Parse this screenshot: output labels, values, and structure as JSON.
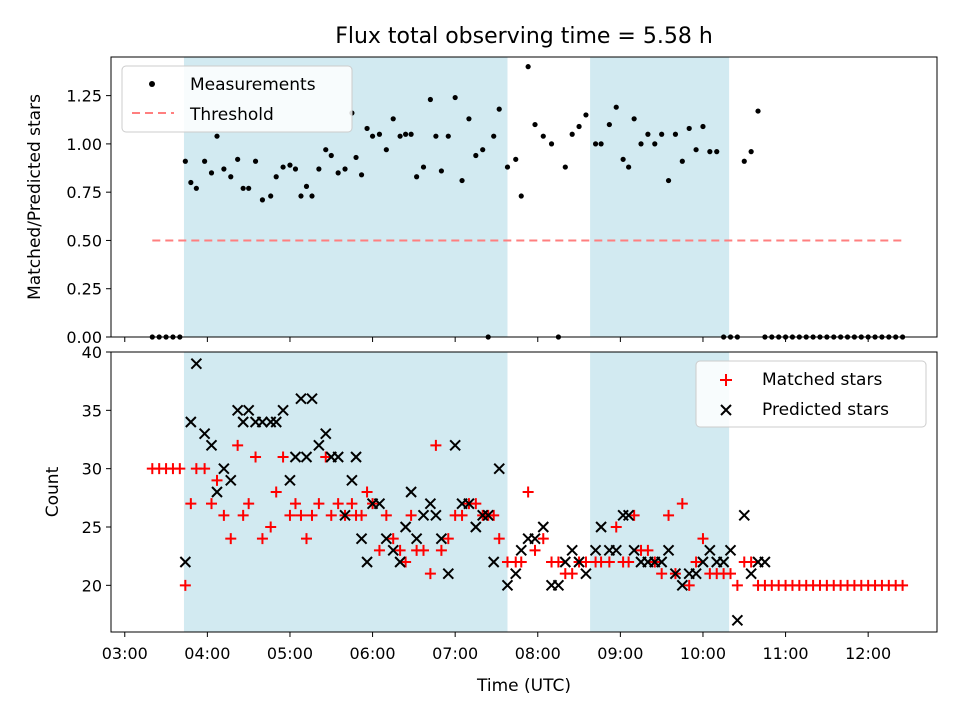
{
  "title": "Flux total observing time = 5.58 h",
  "xlabel": "Time (UTC)",
  "colors": {
    "observing_band": "#add8e6",
    "measurement": "#000000",
    "threshold": "#ff7f7f",
    "matched": "#ff0000",
    "predicted": "#000000"
  },
  "chart_data": [
    {
      "type": "scatter",
      "ylabel": "Matched/Predicted stars",
      "ylim": [
        0.0,
        1.45
      ],
      "yticks": [
        0.0,
        0.25,
        0.5,
        0.75,
        1.0,
        1.25
      ],
      "ytick_labels": [
        "0.00",
        "0.25",
        "0.50",
        "0.75",
        "1.00",
        "1.25"
      ],
      "legend": {
        "position": "top-left",
        "entries": [
          "Measurements",
          "Threshold"
        ]
      },
      "threshold": {
        "name": "Threshold",
        "value": 0.5,
        "x_start": "03:20",
        "x_end": "12:25"
      },
      "series": [
        {
          "name": "Measurements",
          "x": [
            "03:20",
            "03:25",
            "03:30",
            "03:35",
            "03:40",
            "03:44",
            "03:48",
            "03:52",
            "03:58",
            "04:03",
            "04:07",
            "04:12",
            "04:17",
            "04:22",
            "04:26",
            "04:30",
            "04:35",
            "04:40",
            "04:46",
            "04:50",
            "04:55",
            "05:00",
            "05:04",
            "05:08",
            "05:12",
            "05:16",
            "05:21",
            "05:26",
            "05:30",
            "05:35",
            "05:40",
            "05:45",
            "05:48",
            "05:52",
            "05:56",
            "06:00",
            "06:05",
            "06:10",
            "06:15",
            "06:20",
            "06:24",
            "06:28",
            "06:32",
            "06:37",
            "06:42",
            "06:46",
            "06:50",
            "06:55",
            "07:00",
            "07:05",
            "07:10",
            "07:15",
            "07:20",
            "07:24",
            "07:28",
            "07:32",
            "07:38",
            "07:44",
            "07:48",
            "07:53",
            "07:58",
            "08:04",
            "08:10",
            "08:15",
            "08:20",
            "08:25",
            "08:30",
            "08:35",
            "08:42",
            "08:46",
            "08:52",
            "08:57",
            "09:02",
            "09:06",
            "09:10",
            "09:15",
            "09:20",
            "09:25",
            "09:30",
            "09:35",
            "09:40",
            "09:45",
            "09:50",
            "09:55",
            "10:00",
            "10:05",
            "10:10",
            "10:15",
            "10:20",
            "10:25",
            "10:30",
            "10:35",
            "10:40",
            "10:45",
            "10:50",
            "10:55",
            "11:00",
            "11:05",
            "11:10",
            "11:15",
            "11:20",
            "11:25",
            "11:30",
            "11:35",
            "11:40",
            "11:45",
            "11:50",
            "11:55",
            "12:00",
            "12:05",
            "12:10",
            "12:15",
            "12:20",
            "12:25"
          ],
          "y": [
            0,
            0,
            0,
            0,
            0,
            0.91,
            0.8,
            0.77,
            0.91,
            0.85,
            1.04,
            0.87,
            0.83,
            0.92,
            0.77,
            0.77,
            0.91,
            0.71,
            0.73,
            0.83,
            0.88,
            0.89,
            0.87,
            0.73,
            0.78,
            0.73,
            0.87,
            0.97,
            0.94,
            0.85,
            0.87,
            1.16,
            0.93,
            0.84,
            1.08,
            1.04,
            1.05,
            0.97,
            1.13,
            1.04,
            1.05,
            1.05,
            0.83,
            0.88,
            1.23,
            1.04,
            0.86,
            1.04,
            1.24,
            0.81,
            1.13,
            0.94,
            0.97,
            0,
            1.04,
            1.18,
            0.88,
            0.92,
            0.73,
            1.4,
            1.1,
            1.04,
            1.0,
            0,
            0.88,
            1.05,
            1.09,
            1.15,
            1.0,
            1.0,
            1.1,
            1.19,
            0.92,
            0.88,
            1.13,
            1.0,
            1.05,
            1.0,
            1.05,
            0.81,
            1.05,
            0.91,
            1.08,
            0.97,
            1.09,
            0.96,
            0.96,
            0,
            0,
            0,
            0.91,
            0.96,
            1.17,
            0,
            0,
            0,
            0,
            0,
            0,
            0,
            0,
            0,
            0,
            0,
            0,
            0,
            0,
            0,
            0,
            0,
            0,
            0,
            0,
            0
          ]
        }
      ]
    },
    {
      "type": "scatter",
      "ylabel": "Count",
      "ylim": [
        16,
        40
      ],
      "yticks": [
        20,
        25,
        30,
        35,
        40
      ],
      "ytick_labels": [
        "20",
        "25",
        "30",
        "35",
        "40"
      ],
      "xticks": [
        "03:00",
        "04:00",
        "05:00",
        "06:00",
        "07:00",
        "08:00",
        "09:00",
        "10:00",
        "11:00",
        "12:00"
      ],
      "legend": {
        "position": "top-right",
        "entries": [
          "Matched stars",
          "Predicted stars"
        ]
      },
      "series": [
        {
          "name": "Matched stars",
          "x": [
            "03:20",
            "03:25",
            "03:30",
            "03:35",
            "03:40",
            "03:44",
            "03:48",
            "03:52",
            "03:58",
            "04:03",
            "04:07",
            "04:12",
            "04:17",
            "04:22",
            "04:26",
            "04:30",
            "04:35",
            "04:40",
            "04:46",
            "04:50",
            "04:55",
            "05:00",
            "05:04",
            "05:08",
            "05:12",
            "05:16",
            "05:21",
            "05:26",
            "05:30",
            "05:35",
            "05:40",
            "05:45",
            "05:48",
            "05:52",
            "05:56",
            "06:00",
            "06:05",
            "06:10",
            "06:15",
            "06:20",
            "06:24",
            "06:28",
            "06:32",
            "06:37",
            "06:42",
            "06:46",
            "06:50",
            "06:55",
            "07:00",
            "07:05",
            "07:10",
            "07:15",
            "07:20",
            "07:24",
            "07:28",
            "07:32",
            "07:38",
            "07:44",
            "07:48",
            "07:53",
            "07:58",
            "08:04",
            "08:10",
            "08:15",
            "08:20",
            "08:25",
            "08:30",
            "08:35",
            "08:42",
            "08:46",
            "08:52",
            "08:57",
            "09:02",
            "09:06",
            "09:10",
            "09:15",
            "09:20",
            "09:25",
            "09:30",
            "09:35",
            "09:40",
            "09:45",
            "09:50",
            "09:55",
            "10:00",
            "10:05",
            "10:10",
            "10:15",
            "10:20",
            "10:25",
            "10:30",
            "10:35",
            "10:40",
            "10:45",
            "10:50",
            "10:55",
            "11:00",
            "11:05",
            "11:10",
            "11:15",
            "11:20",
            "11:25",
            "11:30",
            "11:35",
            "11:40",
            "11:45",
            "11:50",
            "11:55",
            "12:00",
            "12:05",
            "12:10",
            "12:15",
            "12:20",
            "12:25"
          ],
          "y": [
            30,
            30,
            30,
            30,
            30,
            20,
            27,
            30,
            30,
            27,
            29,
            26,
            24,
            32,
            26,
            27,
            31,
            24,
            25,
            28,
            31,
            26,
            27,
            26,
            24,
            26,
            27,
            31,
            26,
            27,
            26,
            27,
            26,
            26,
            28,
            27,
            23,
            26,
            24,
            23,
            22,
            26,
            23,
            23,
            21,
            32,
            23,
            24,
            26,
            26,
            27,
            27,
            26,
            26,
            26,
            24,
            22,
            22,
            22,
            28,
            23,
            24,
            22,
            22,
            21,
            21,
            22,
            22,
            22,
            22,
            22,
            25,
            22,
            22,
            26,
            23,
            23,
            22,
            21,
            26,
            21,
            27,
            20,
            22,
            24,
            21,
            21,
            21,
            21,
            20,
            22,
            22,
            20,
            20,
            20,
            20,
            20,
            20,
            20,
            20,
            20,
            20,
            20,
            20,
            20,
            20,
            20,
            20,
            20,
            20,
            20,
            20,
            20,
            20
          ]
        },
        {
          "name": "Predicted stars",
          "x": [
            "03:44",
            "03:48",
            "03:52",
            "03:58",
            "04:03",
            "04:07",
            "04:12",
            "04:17",
            "04:22",
            "04:26",
            "04:30",
            "04:35",
            "04:40",
            "04:46",
            "04:50",
            "04:55",
            "05:00",
            "05:04",
            "05:08",
            "05:12",
            "05:16",
            "05:21",
            "05:26",
            "05:30",
            "05:35",
            "05:40",
            "05:45",
            "05:48",
            "05:52",
            "05:56",
            "06:00",
            "06:05",
            "06:10",
            "06:15",
            "06:20",
            "06:24",
            "06:28",
            "06:32",
            "06:37",
            "06:42",
            "06:46",
            "06:50",
            "06:55",
            "07:00",
            "07:05",
            "07:10",
            "07:15",
            "07:20",
            "07:24",
            "07:28",
            "07:32",
            "07:38",
            "07:44",
            "07:48",
            "07:53",
            "07:58",
            "08:04",
            "08:10",
            "08:15",
            "08:20",
            "08:25",
            "08:30",
            "08:35",
            "08:42",
            "08:46",
            "08:52",
            "08:57",
            "09:02",
            "09:06",
            "09:10",
            "09:15",
            "09:20",
            "09:25",
            "09:30",
            "09:35",
            "09:40",
            "09:45",
            "09:50",
            "09:55",
            "10:00",
            "10:05",
            "10:10",
            "10:15",
            "10:20",
            "10:25",
            "10:30",
            "10:35",
            "10:40",
            "10:45"
          ],
          "y": [
            22,
            34,
            39,
            33,
            32,
            28,
            30,
            29,
            35,
            34,
            35,
            34,
            34,
            34,
            34,
            35,
            29,
            31,
            36,
            31,
            36,
            32,
            33,
            31,
            31,
            26,
            29,
            31,
            24,
            22,
            27,
            27,
            24,
            23,
            22,
            25,
            28,
            24,
            26,
            27,
            26,
            24,
            21,
            32,
            27,
            27,
            25,
            26,
            26,
            22,
            30,
            20,
            21,
            23,
            24,
            24,
            25,
            20,
            20,
            22,
            23,
            22,
            21,
            23,
            25,
            23,
            23,
            26,
            26,
            23,
            22,
            22,
            22,
            22,
            23,
            21,
            20,
            21,
            21,
            22,
            23,
            22,
            22,
            23,
            17,
            26,
            21,
            22,
            22
          ]
        }
      ]
    }
  ],
  "observing_windows": [
    [
      "03:43",
      "07:38"
    ],
    [
      "08:38",
      "10:19"
    ]
  ]
}
